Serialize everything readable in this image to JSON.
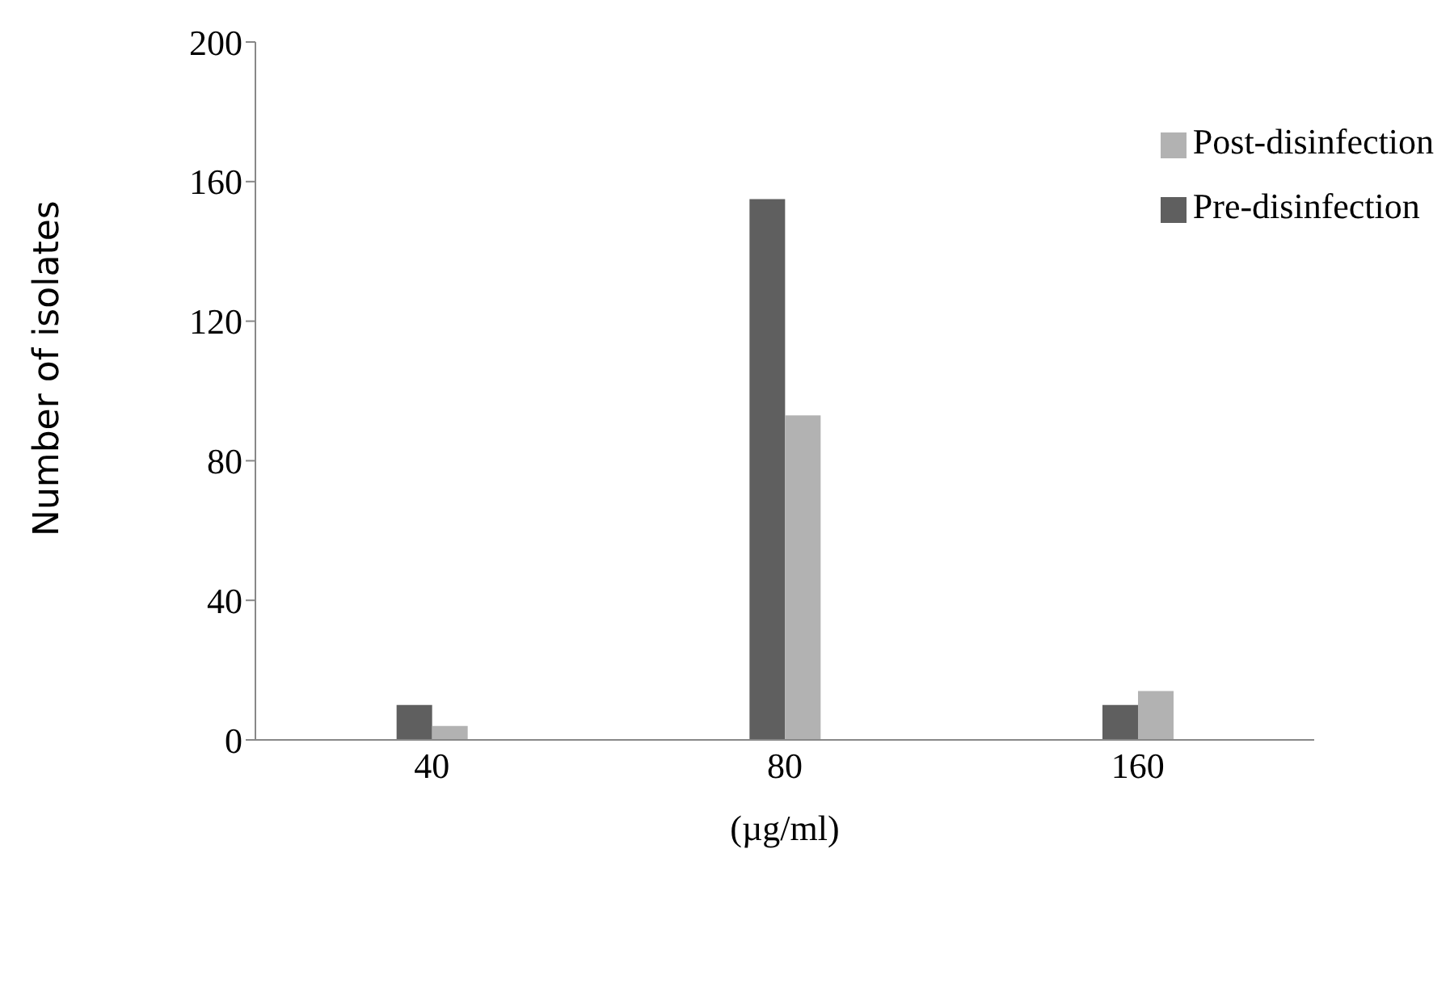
{
  "chart_data": {
    "type": "bar",
    "xlabel": "(µg/ml)",
    "ylabel": "Number of isolates",
    "categories": [
      "40",
      "80",
      "160"
    ],
    "series": [
      {
        "name": "Pre-disinfection",
        "color": "#5f5f5f",
        "values": [
          10,
          155,
          10
        ]
      },
      {
        "name": "Post-disinfection",
        "color": "#b2b2b2",
        "values": [
          4,
          93,
          14
        ]
      }
    ],
    "ylim": [
      0,
      200
    ],
    "yticks": [
      0,
      40,
      80,
      120,
      160,
      200
    ],
    "grid": false,
    "legend": "top right"
  }
}
